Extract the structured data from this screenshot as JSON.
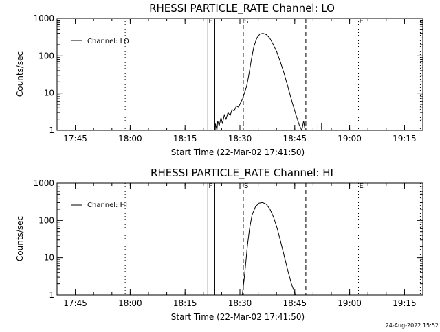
{
  "footer": {
    "timestamp": "24-Aug-2022 15:52"
  },
  "chart_data": [
    {
      "type": "line",
      "title": "RHESSI PARTICLE_RATE Channel: LO",
      "xlabel": "Start Time (22-Mar-02 17:41:50)",
      "ylabel": "Counts/sec",
      "y_scale": "log",
      "ylim": [
        1,
        1000
      ],
      "xlim_minutes": [
        -1.83,
        98.17
      ],
      "x_ticks": [
        {
          "label": "17:45",
          "min": 3.17
        },
        {
          "label": "18:00",
          "min": 18.17
        },
        {
          "label": "18:15",
          "min": 33.17
        },
        {
          "label": "18:30",
          "min": 48.17
        },
        {
          "label": "18:45",
          "min": 63.17
        },
        {
          "label": "19:00",
          "min": 78.17
        },
        {
          "label": "19:15",
          "min": 93.17
        }
      ],
      "y_ticks": [
        {
          "label": "1",
          "value": 1
        },
        {
          "label": "10",
          "value": 10
        },
        {
          "label": "100",
          "value": 100
        },
        {
          "label": "1000",
          "value": 1000
        }
      ],
      "legend": {
        "label": "Channel: LO",
        "placement": "top-left"
      },
      "markers": [
        {
          "label": "F",
          "min": 39.4,
          "style": "solid"
        },
        {
          "label": "",
          "min": 41.3,
          "style": "solid"
        },
        {
          "label": "S",
          "min": 49.1,
          "style": "dashed"
        },
        {
          "label": "",
          "min": 66.2,
          "style": "dashed"
        },
        {
          "label": "E",
          "min": 80.6,
          "style": "dotted"
        },
        {
          "label": "",
          "min": 16.8,
          "style": "dotted"
        },
        {
          "label": "",
          "min": 97.5,
          "style": "dotted"
        }
      ],
      "series": [
        {
          "points": [
            [
              41.4,
              1
            ],
            [
              41.5,
              1.5
            ],
            [
              41.9,
              1
            ],
            [
              42.1,
              1.8
            ],
            [
              42.5,
              1.3
            ],
            [
              43.0,
              2.2
            ],
            [
              43.4,
              1.5
            ],
            [
              43.9,
              2.6
            ],
            [
              44.4,
              2.0
            ],
            [
              44.9,
              3.0
            ],
            [
              45.5,
              2.5
            ],
            [
              46.0,
              3.6
            ],
            [
              46.6,
              3.3
            ],
            [
              47.2,
              4.5
            ],
            [
              47.8,
              4.2
            ],
            [
              48.4,
              5.6
            ],
            [
              48.9,
              7.0
            ],
            [
              49.4,
              10
            ],
            [
              50.0,
              15
            ],
            [
              50.6,
              30
            ],
            [
              51.3,
              80
            ],
            [
              52.0,
              180
            ],
            [
              52.8,
              300
            ],
            [
              53.6,
              380
            ],
            [
              54.5,
              400
            ],
            [
              55.4,
              370
            ],
            [
              56.3,
              300
            ],
            [
              57.2,
              210
            ],
            [
              58.2,
              130
            ],
            [
              59.2,
              70
            ],
            [
              60.2,
              35
            ],
            [
              61.2,
              16
            ],
            [
              62.2,
              7
            ],
            [
              63.3,
              3
            ],
            [
              64.4,
              1.4
            ],
            [
              65.1,
              1
            ],
            [
              65.6,
              1.8
            ],
            [
              66.0,
              1
            ]
          ],
          "spikes": [
            [
              69.5,
              1.5
            ],
            [
              70.5,
              1.6
            ]
          ]
        }
      ]
    },
    {
      "type": "line",
      "title": "RHESSI PARTICLE_RATE Channel: HI",
      "xlabel": "Start Time (22-Mar-02 17:41:50)",
      "ylabel": "Counts/sec",
      "y_scale": "log",
      "ylim": [
        1,
        1000
      ],
      "xlim_minutes": [
        -1.83,
        98.17
      ],
      "x_ticks": [
        {
          "label": "17:45",
          "min": 3.17
        },
        {
          "label": "18:00",
          "min": 18.17
        },
        {
          "label": "18:15",
          "min": 33.17
        },
        {
          "label": "18:30",
          "min": 48.17
        },
        {
          "label": "18:45",
          "min": 63.17
        },
        {
          "label": "19:00",
          "min": 78.17
        },
        {
          "label": "19:15",
          "min": 93.17
        }
      ],
      "y_ticks": [
        {
          "label": "1",
          "value": 1
        },
        {
          "label": "10",
          "value": 10
        },
        {
          "label": "100",
          "value": 100
        },
        {
          "label": "1000",
          "value": 1000
        }
      ],
      "legend": {
        "label": "Channel: HI",
        "placement": "top-left"
      },
      "markers": [
        {
          "label": "F",
          "min": 39.4,
          "style": "solid"
        },
        {
          "label": "",
          "min": 41.3,
          "style": "solid"
        },
        {
          "label": "S",
          "min": 49.1,
          "style": "dashed"
        },
        {
          "label": "",
          "min": 66.2,
          "style": "dashed"
        },
        {
          "label": "E",
          "min": 80.6,
          "style": "dotted"
        },
        {
          "label": "",
          "min": 16.8,
          "style": "dotted"
        },
        {
          "label": "",
          "min": 97.5,
          "style": "dotted"
        }
      ],
      "series": [
        {
          "points": [
            [
              48.8,
              1
            ],
            [
              49.0,
              1.4
            ],
            [
              49.3,
              2.5
            ],
            [
              49.7,
              6
            ],
            [
              50.2,
              20
            ],
            [
              50.8,
              60
            ],
            [
              51.5,
              140
            ],
            [
              52.4,
              230
            ],
            [
              53.4,
              290
            ],
            [
              54.4,
              300
            ],
            [
              55.4,
              270
            ],
            [
              56.4,
              200
            ],
            [
              57.4,
              120
            ],
            [
              58.4,
              60
            ],
            [
              59.4,
              25
            ],
            [
              60.4,
              10
            ],
            [
              61.4,
              4
            ],
            [
              62.4,
              1.8
            ],
            [
              63.4,
              1
            ]
          ],
          "spikes": []
        }
      ]
    }
  ]
}
